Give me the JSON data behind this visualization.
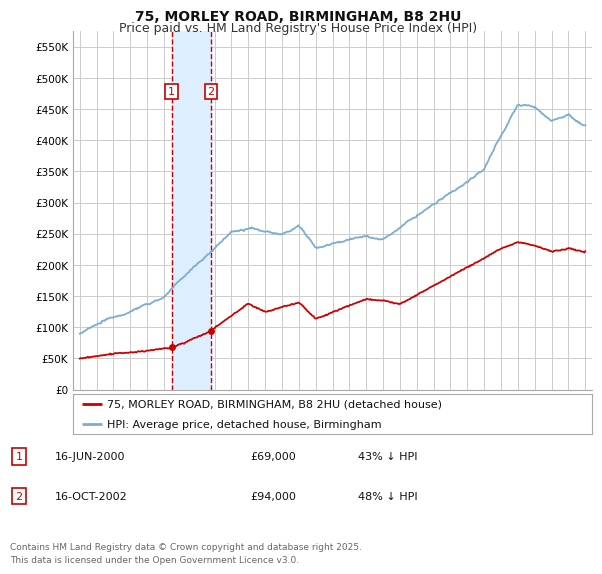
{
  "title": "75, MORLEY ROAD, BIRMINGHAM, B8 2HU",
  "subtitle": "Price paid vs. HM Land Registry's House Price Index (HPI)",
  "background_color": "#ffffff",
  "plot_bg_color": "#ffffff",
  "grid_color": "#cccccc",
  "ylim": [
    0,
    575000
  ],
  "yticks": [
    0,
    50000,
    100000,
    150000,
    200000,
    250000,
    300000,
    350000,
    400000,
    450000,
    500000,
    550000
  ],
  "ytick_labels": [
    "£0",
    "£50K",
    "£100K",
    "£150K",
    "£200K",
    "£250K",
    "£300K",
    "£350K",
    "£400K",
    "£450K",
    "£500K",
    "£550K"
  ],
  "sale1_date": 2000.46,
  "sale1_price": 69000,
  "sale1_label": "1",
  "sale1_text": "16-JUN-2000",
  "sale1_price_text": "£69,000",
  "sale1_hpi_text": "43% ↓ HPI",
  "sale2_date": 2002.79,
  "sale2_price": 94000,
  "sale2_label": "2",
  "sale2_text": "16-OCT-2002",
  "sale2_price_text": "£94,000",
  "sale2_hpi_text": "48% ↓ HPI",
  "red_line_color": "#cc0000",
  "blue_line_color": "#7aacd4",
  "shade_color": "#ddeeff",
  "legend_label_red": "75, MORLEY ROAD, BIRMINGHAM, B8 2HU (detached house)",
  "legend_label_blue": "HPI: Average price, detached house, Birmingham",
  "footer_text": "Contains HM Land Registry data © Crown copyright and database right 2025.\nThis data is licensed under the Open Government Licence v3.0.",
  "title_fontsize": 10,
  "subtitle_fontsize": 9,
  "axis_fontsize": 7.5,
  "legend_fontsize": 8
}
